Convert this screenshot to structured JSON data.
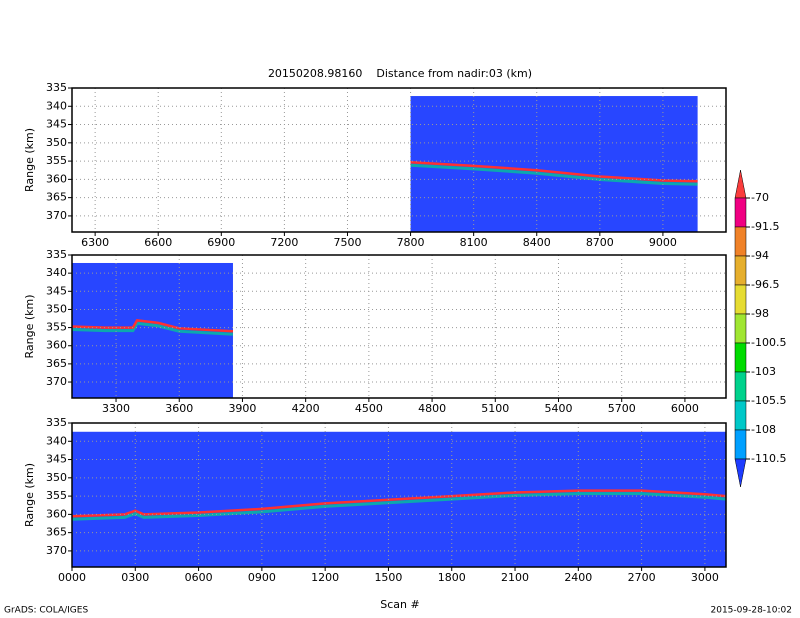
{
  "title": "20150208.98160    Distance from nadir:03 (km)",
  "xlabel": "Scan #",
  "footer_left": "GrADS: COLA/IGES",
  "footer_right": "2015-09-28-10:02",
  "colorbar": {
    "levels": [
      -70,
      -91.5,
      -94,
      -96.5,
      -98,
      -100.5,
      -103,
      -105.5,
      -108,
      -110.5
    ],
    "colors": [
      "#fa3c3c",
      "#f00082",
      "#f08228",
      "#e6af2d",
      "#e6dc32",
      "#a0e632",
      "#00dc00",
      "#00d28c",
      "#00c8c8",
      "#00a0ff",
      "#1e3cff"
    ]
  },
  "chart_data": [
    {
      "type": "curtain",
      "ylabel": "Range (km)",
      "background": "#2846ff",
      "grid": true,
      "xlim": [
        6190,
        9300
      ],
      "ylim": [
        374.4,
        335
      ],
      "xticks": [
        6300,
        6600,
        6900,
        7200,
        7500,
        7800,
        8100,
        8400,
        8700,
        9000
      ],
      "yticks": [
        335,
        340,
        345,
        350,
        355,
        360,
        365,
        370
      ],
      "coverage": [
        7800,
        9165
      ],
      "coverage_top": 337.2,
      "series": [
        {
          "color": "#ff3030",
          "x": [
            7800,
            8100,
            8400,
            8700,
            9000,
            9165
          ],
          "values": [
            355.3,
            356.3,
            357.5,
            359.2,
            360.3,
            360.5
          ]
        }
      ]
    },
    {
      "type": "curtain",
      "ylabel": "Range (km)",
      "background": "#2846ff",
      "grid": true,
      "xlim": [
        3091,
        6195
      ],
      "ylim": [
        374.4,
        335
      ],
      "xticks": [
        3300,
        3600,
        3900,
        4200,
        4500,
        4800,
        5100,
        5400,
        5700,
        6000
      ],
      "yticks": [
        335,
        340,
        345,
        350,
        355,
        360,
        365,
        370
      ],
      "coverage": [
        3091,
        3855
      ],
      "coverage_top": 337.2,
      "series": [
        {
          "color": "#ff3030",
          "x": [
            3091,
            3250,
            3380,
            3400,
            3500,
            3600,
            3855
          ],
          "values": [
            354.7,
            355,
            355,
            353,
            353.7,
            355.2,
            356
          ]
        }
      ]
    },
    {
      "type": "curtain",
      "ylabel": "Range (km)",
      "background": "#2846ff",
      "grid": true,
      "xlim": [
        0,
        3100
      ],
      "ylim": [
        374.4,
        335
      ],
      "xticks": [
        {
          "value": 0,
          "label": "0000"
        },
        {
          "value": 300,
          "label": "0300"
        },
        {
          "value": 600,
          "label": "0600"
        },
        {
          "value": 900,
          "label": "0900"
        },
        1200,
        1500,
        1800,
        2100,
        2400,
        2700,
        3000
      ],
      "yticks": [
        335,
        340,
        345,
        350,
        355,
        360,
        365,
        370
      ],
      "coverage": [
        0,
        3100
      ],
      "coverage_top": 337.4,
      "series": [
        {
          "color": "#ff3030",
          "x": [
            0,
            250,
            300,
            340,
            600,
            900,
            1200,
            1500,
            1800,
            2100,
            2400,
            2700,
            3000,
            3100
          ],
          "values": [
            360.5,
            360,
            359,
            360,
            359.5,
            358.5,
            357,
            356,
            355,
            354,
            353.5,
            353.5,
            354.5,
            355
          ]
        }
      ]
    }
  ]
}
